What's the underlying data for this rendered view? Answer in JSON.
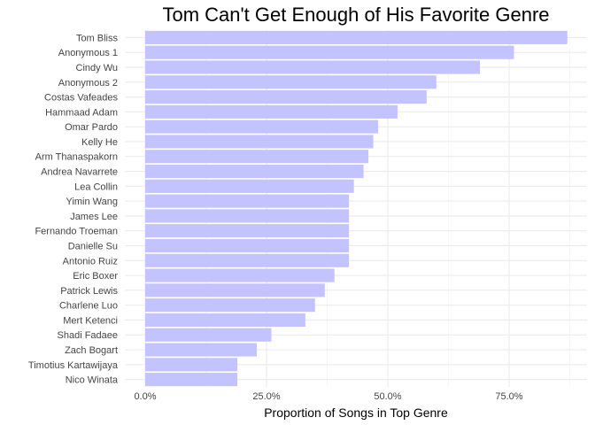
{
  "chart_data": {
    "type": "bar",
    "orientation": "horizontal",
    "title": "Tom Can't Get Enough of His Favorite Genre",
    "xlabel": "Proportion of Songs in Top Genre",
    "ylabel": "",
    "xlim": [
      0,
      0.9
    ],
    "x_ticks": [
      0,
      0.25,
      0.5,
      0.75
    ],
    "x_tick_labels": [
      "0.0%",
      "25.0%",
      "50.0%",
      "75.0%"
    ],
    "grid": true,
    "bar_color": "#c3c3ff",
    "categories": [
      "Tom Bliss",
      "Anonymous 1",
      "Cindy Wu",
      "Anonymous 2",
      "Costas Vafeades",
      "Hammaad Adam",
      "Omar Pardo",
      "Kelly He",
      "Arm Thanaspakorn",
      "Andrea Navarrete",
      "Lea Collin",
      "Yimin Wang",
      "James Lee",
      "Fernando Troeman",
      "Danielle Su",
      "Antonio Ruiz",
      "Eric Boxer",
      "Patrick Lewis",
      "Charlene Luo",
      "Mert Ketenci",
      "Shadi Fadaee",
      "Zach Bogart",
      "Timotius Kartawijaya",
      "Nico Winata"
    ],
    "values": [
      0.87,
      0.76,
      0.69,
      0.6,
      0.58,
      0.52,
      0.48,
      0.47,
      0.46,
      0.45,
      0.43,
      0.42,
      0.42,
      0.42,
      0.42,
      0.42,
      0.39,
      0.37,
      0.35,
      0.33,
      0.26,
      0.23,
      0.19,
      0.19
    ]
  }
}
